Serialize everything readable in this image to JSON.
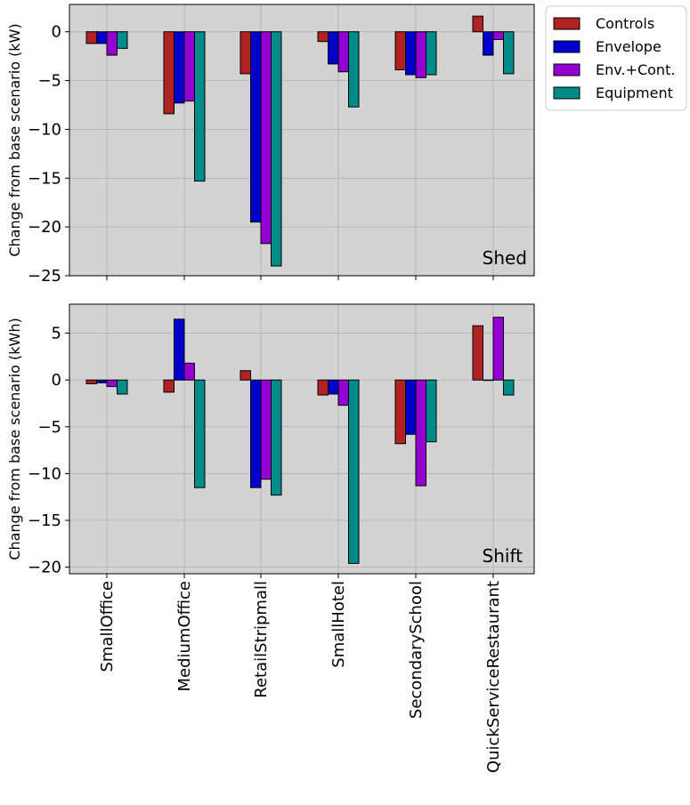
{
  "chart_data": {
    "type": "bar",
    "categories": [
      "SmallOffice",
      "MediumOffice",
      "RetailStripmall",
      "SmallHotel",
      "SecondarySchool",
      "QuickServiceRestaurant"
    ],
    "series_names": [
      "Controls",
      "Envelope",
      "Env.+Cont.",
      "Equipment"
    ],
    "colors": [
      "#b22222",
      "#0000cd",
      "#9400d3",
      "#008b8b"
    ],
    "background": "#d3d3d3",
    "grid": true,
    "legend": "outside top-right",
    "panels": [
      {
        "tag": "Shed",
        "ylabel": "Change from base scenario (kW)",
        "ylim": [
          -25,
          2.8
        ],
        "yticks": [
          0,
          -5,
          -10,
          -15,
          -20,
          -25
        ],
        "series": [
          {
            "name": "Controls",
            "values": [
              -1.2,
              -8.4,
              -4.3,
              -1.0,
              -3.9,
              1.6
            ]
          },
          {
            "name": "Envelope",
            "values": [
              -1.2,
              -7.3,
              -19.5,
              -3.3,
              -4.4,
              -2.4
            ]
          },
          {
            "name": "Env.+Cont.",
            "values": [
              -2.4,
              -7.1,
              -21.7,
              -4.1,
              -4.7,
              -0.8
            ]
          },
          {
            "name": "Equipment",
            "values": [
              -1.7,
              -15.3,
              -24.0,
              -7.7,
              -4.4,
              -4.3
            ]
          }
        ]
      },
      {
        "tag": "Shift",
        "ylabel": "Change from base scenario (kWh)",
        "ylim": [
          -20.7,
          8.1
        ],
        "yticks": [
          5,
          0,
          -5,
          -10,
          -15,
          -20
        ],
        "series": [
          {
            "name": "Controls",
            "values": [
              -0.4,
              -1.3,
              1.0,
              -1.6,
              -6.8,
              5.8
            ]
          },
          {
            "name": "Envelope",
            "values": [
              -0.3,
              6.5,
              -11.5,
              -1.5,
              -5.8,
              0.0
            ]
          },
          {
            "name": "Env.+Cont.",
            "values": [
              -0.7,
              1.8,
              -10.6,
              -2.7,
              -11.3,
              6.7
            ]
          },
          {
            "name": "Equipment",
            "values": [
              -1.5,
              -11.5,
              -12.3,
              -19.6,
              -6.6,
              -1.6
            ]
          }
        ]
      }
    ]
  }
}
